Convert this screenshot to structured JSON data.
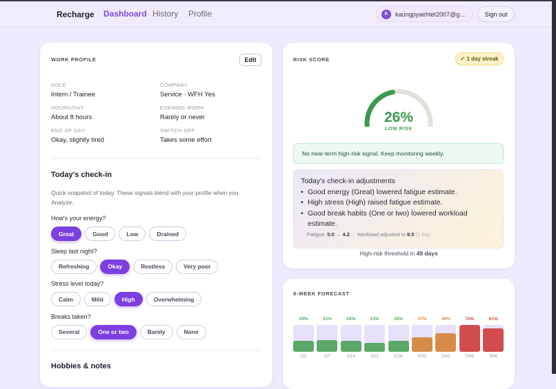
{
  "header": {
    "brand": "Recharge",
    "nav": [
      "Dashboard",
      "History",
      "Profile"
    ],
    "active": "Dashboard",
    "user_initial": "K",
    "user_email": "kaungpyaehtet2007@g...",
    "signout": "Sign out"
  },
  "work_profile": {
    "title": "WORK PROFILE",
    "edit": "Edit",
    "fields": [
      {
        "label": "ROLE",
        "value": "Intern / Trainee"
      },
      {
        "label": "COMPANY",
        "value": "Service · WFH Yes"
      },
      {
        "label": "HOURS/DAY",
        "value": "About 8 hours"
      },
      {
        "label": "EVENING WORK",
        "value": "Rarely or never"
      },
      {
        "label": "END OF DAY",
        "value": "Okay, slightly tired"
      },
      {
        "label": "SWITCH OFF",
        "value": "Takes some effort"
      }
    ]
  },
  "checkin": {
    "title": "Today's check-in",
    "desc": "Quick snapshot of today. These signals blend with your profile when you Analyze.",
    "questions": [
      {
        "q": "How's your energy?",
        "options": [
          "Great",
          "Good",
          "Low",
          "Drained"
        ],
        "selected": 0
      },
      {
        "q": "Sleep last night?",
        "options": [
          "Refreshing",
          "Okay",
          "Restless",
          "Very poor"
        ],
        "selected": 1
      },
      {
        "q": "Stress level today?",
        "options": [
          "Calm",
          "Mild",
          "High",
          "Overwhelming"
        ],
        "selected": 2
      },
      {
        "q": "Breaks taken?",
        "options": [
          "Several",
          "One or two",
          "Barely",
          "None"
        ],
        "selected": 1
      }
    ]
  },
  "hobbies": {
    "title": "Hobbies & notes"
  },
  "risk": {
    "title": "RISK SCORE",
    "streak": "✓ 1 day streak",
    "percent": "26%",
    "gauge_fill": 0.45,
    "level": "LOW RISK",
    "color": "#3b9a4c",
    "signal": "No near-term high-risk signal. Keep monitoring weekly.",
    "adjust_title": "Today's check-in adjustments",
    "adjustments": [
      "Good energy (Great) lowered fatigue estimate.",
      "High stress (High) raised fatigue estimate.",
      "Good break habits (One or two) lowered workload estimate."
    ],
    "meta": {
      "fatigue_label": "Fatigue:",
      "fatigue_from": "5.0",
      "arrow": "→",
      "fatigue_to": "4.2",
      "sep": "·",
      "workload_label": "Workload adjusted to",
      "workload": "8.5",
      "logs": "(1 log)"
    },
    "threshold_prefix": "High-risk threshold in",
    "threshold_days": "49 days"
  },
  "chart_data": {
    "type": "bar",
    "title": "8-WEEK FORECAST",
    "categories": [
      "D0",
      "D7",
      "D14",
      "D21",
      "D28",
      "D35",
      "D42",
      "D49",
      "D56"
    ],
    "values": [
      29,
      31,
      29,
      23,
      28,
      37,
      48,
      70,
      61
    ],
    "labels": [
      "29%",
      "31%",
      "29%",
      "23%",
      "28%",
      "37%",
      "48%",
      "70%",
      "61%"
    ],
    "colors": {
      "low": "#5ba866",
      "mid": "#d68c48",
      "high": "#d14d4d",
      "track": "#e6e0fb"
    }
  }
}
